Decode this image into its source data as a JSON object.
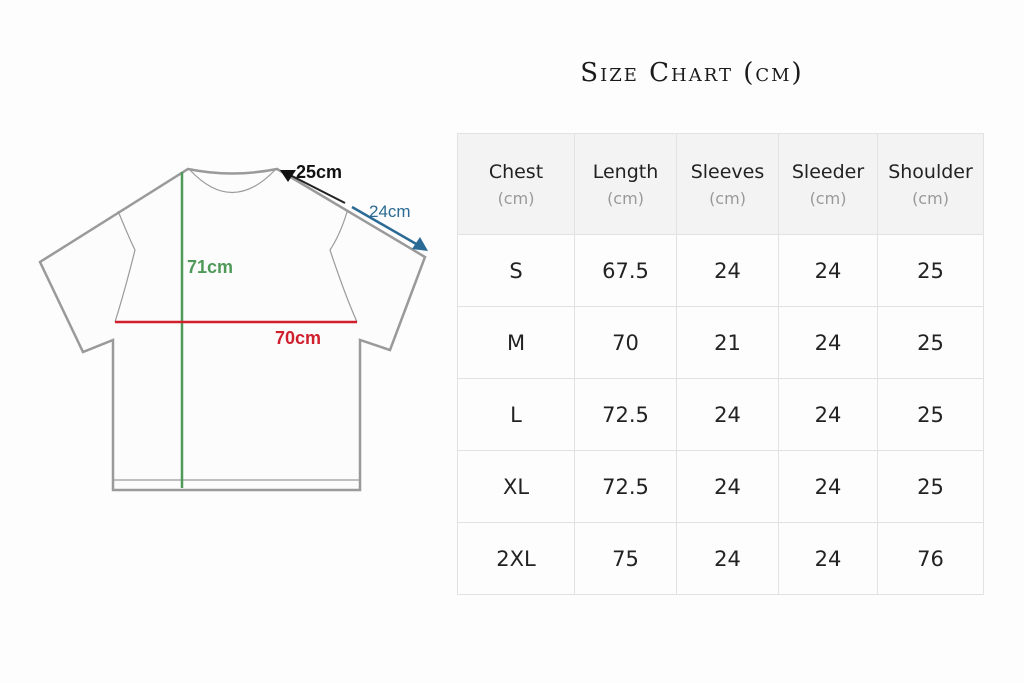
{
  "title": "Size Chart (cm)",
  "diagram": {
    "length": "71cm",
    "chest": "70cm",
    "shoulder": "25cm",
    "sleeve": "24cm"
  },
  "colors": {
    "length": "#4f9a5a",
    "chest": "#d0202e",
    "sleeve": "#2a6a94"
  },
  "table": {
    "headers": [
      {
        "label": "Chest",
        "unit": "(cm)"
      },
      {
        "label": "Length",
        "unit": "(cm)"
      },
      {
        "label": "Sleeves",
        "unit": "(cm)"
      },
      {
        "label": "Sleeder",
        "unit": "(cm)"
      },
      {
        "label": "Shoulder",
        "unit": "(cm)"
      }
    ],
    "rows": [
      [
        "S",
        "67.5",
        "24",
        "24",
        "25"
      ],
      [
        "M",
        "70",
        "21",
        "24",
        "25"
      ],
      [
        "L",
        "72.5",
        "24",
        "24",
        "25"
      ],
      [
        "XL",
        "72.5",
        "24",
        "24",
        "25"
      ],
      [
        "2XL",
        "75",
        "24",
        "24",
        "76"
      ]
    ]
  }
}
